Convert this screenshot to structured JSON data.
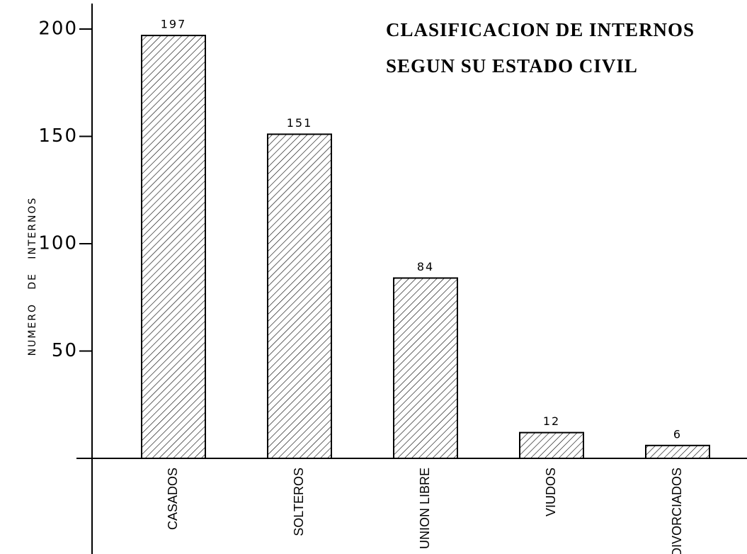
{
  "chart_data": {
    "type": "bar",
    "title": "CLASIFICACION DE INTERNOS",
    "subtitle": "SEGUN SU ESTADO CIVIL",
    "y_label": "NUMERO   DE   INTERNOS",
    "categories": [
      "CASADOS",
      "SOLTEROS",
      "UNION LIBRE",
      "VIUDOS",
      "DIVORCIADOS"
    ],
    "values": [
      197,
      151,
      84,
      12,
      6
    ],
    "color": "#000000",
    "ylim": [
      0,
      210
    ],
    "yticks": [
      50,
      100,
      150,
      200
    ]
  }
}
